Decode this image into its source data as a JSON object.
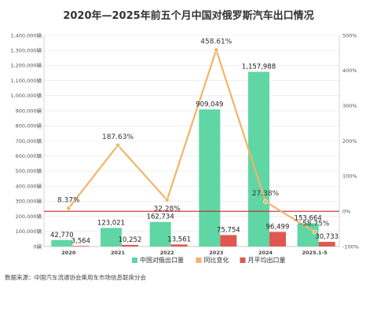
{
  "title": "2020年—2025年前五个月中国对俄罗斯汽车出口情况",
  "source": "数据来源：中国汽车流通协会乘用车市场信息联席分会",
  "watermark": "头条 @数据城市",
  "colors": {
    "export": "#5fd6a4",
    "monthly": "#e0574f",
    "yoy": "#f2b468",
    "zero_line": "#c0262b",
    "grid": "#e6e6e6"
  },
  "chart_data": {
    "type": "bar",
    "categories": [
      "2020",
      "2021",
      "2022",
      "2023",
      "2024",
      "2025.1-5"
    ],
    "series": [
      {
        "name": "中国对俄出口量",
        "type": "bar",
        "values": [
          42770,
          123021,
          162734,
          909049,
          1157988,
          153664
        ],
        "labels": [
          "42,770",
          "123,021",
          "162,734",
          "909,049",
          "1,157,988",
          "153,664"
        ]
      },
      {
        "name": "月平均出口量",
        "type": "bar",
        "values": [
          3564,
          10252,
          13561,
          75754,
          96499,
          30733
        ],
        "labels": [
          "3,564",
          "10,252",
          "13,561",
          "75,754",
          "96,499",
          "30,733"
        ]
      },
      {
        "name": "同比变化",
        "type": "line",
        "axis": "right",
        "values": [
          8.37,
          187.63,
          32.28,
          458.61,
          27.38,
          -58.75
        ],
        "labels": [
          "8.37%",
          "187.63%",
          "32.28%",
          "458.61%",
          "27.38%",
          "-58.75%"
        ]
      }
    ],
    "y_left": {
      "min": 0,
      "max": 1400000,
      "step": 100000
    },
    "y_right": {
      "min": -100,
      "max": 500,
      "step": 100
    },
    "y_left_ticks": [
      "0辆",
      "100,000辆",
      "200,000辆",
      "300,000辆",
      "400,000辆",
      "500,000辆",
      "600,000辆",
      "700,000辆",
      "800,000辆",
      "900,000辆",
      "1,000,000辆",
      "1,100,000辆",
      "1,200,000辆",
      "1,300,000辆",
      "1,400,000辆"
    ],
    "y_right_ticks": [
      "-100%",
      "0%",
      "100%",
      "200%",
      "300%",
      "400%",
      "500%"
    ],
    "legend_position": "bottom"
  }
}
